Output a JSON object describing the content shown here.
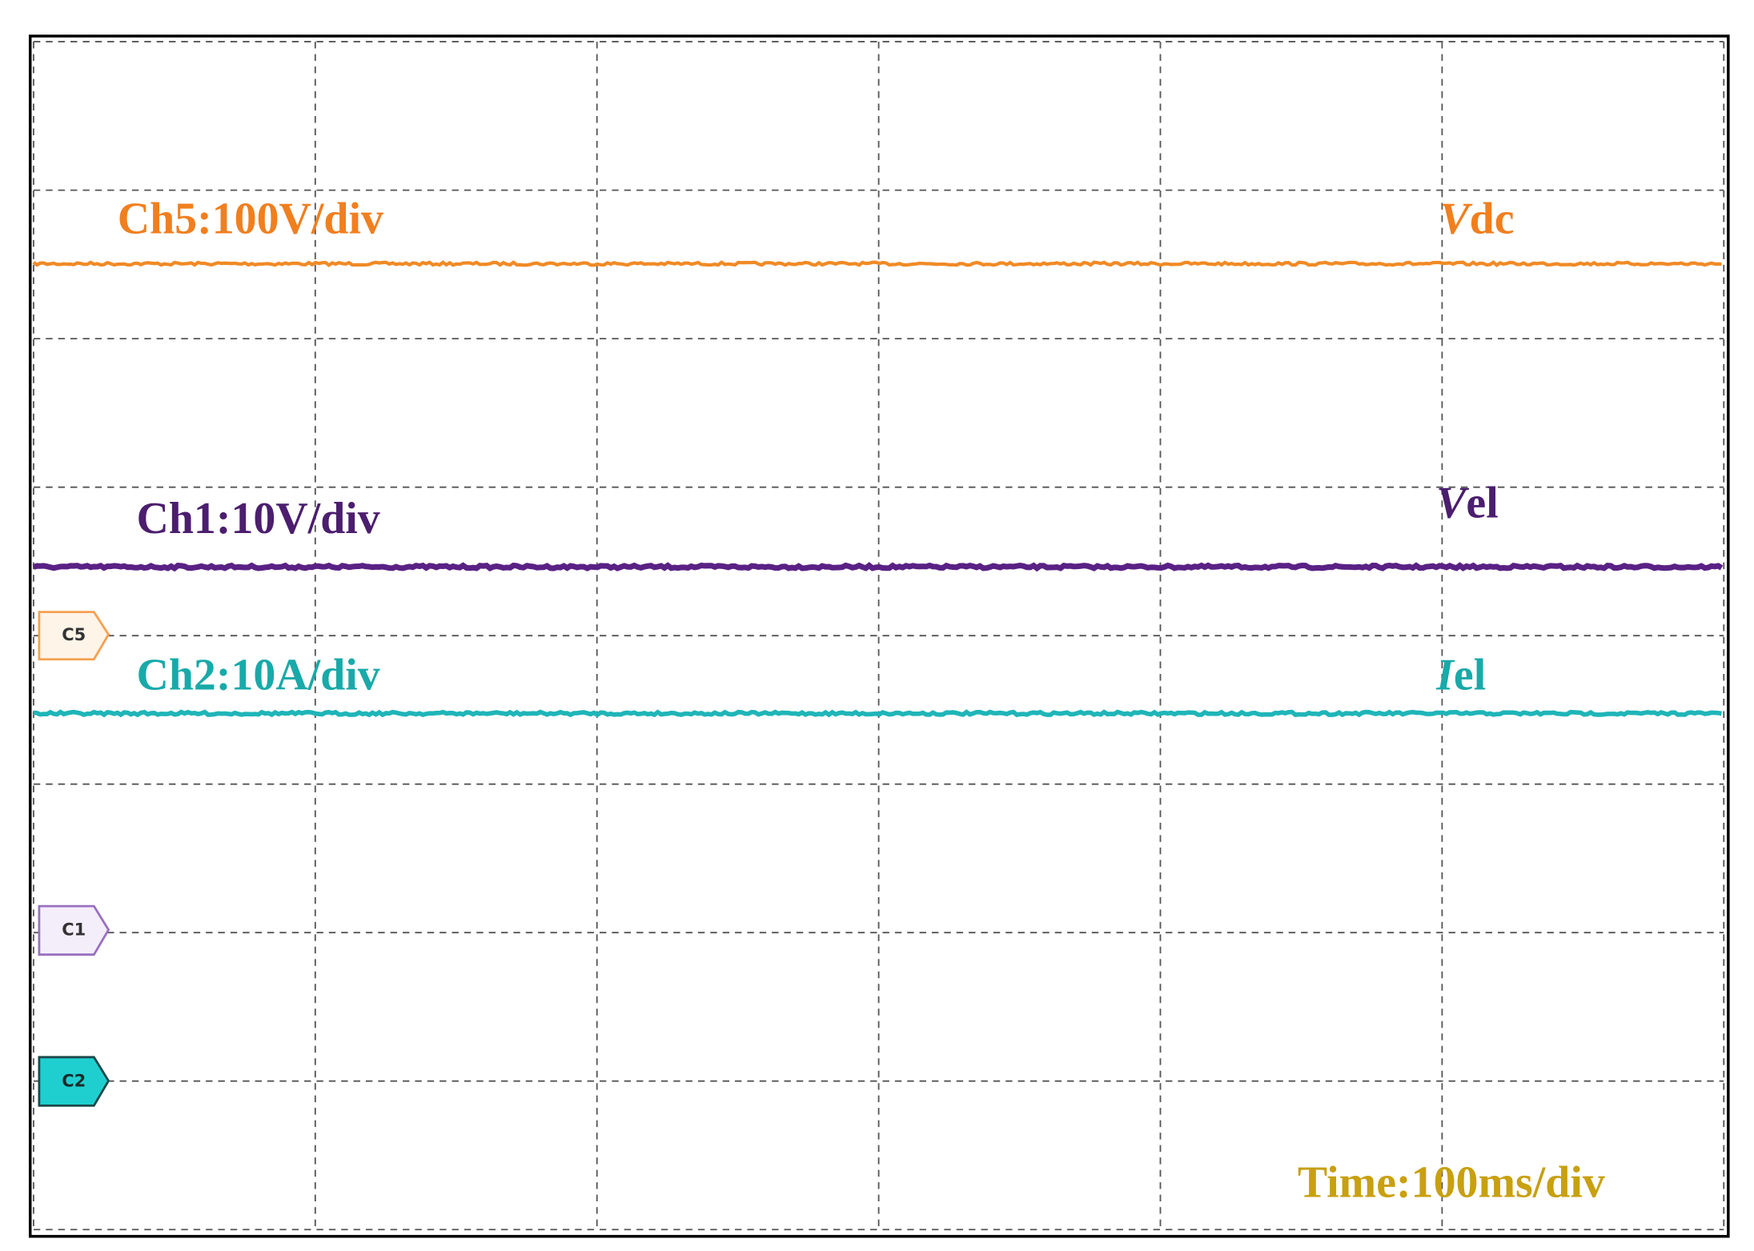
{
  "channels": [
    {
      "label": "Ch5:100V/div",
      "symbol": "V",
      "suffix": "dc",
      "marker": "C5"
    },
    {
      "label": "Ch1:10V/div",
      "symbol": "V",
      "suffix": "el",
      "marker": "C1"
    },
    {
      "label": "Ch2:10A/div",
      "symbol": "I",
      "suffix": "el",
      "marker": "C2"
    }
  ],
  "time_label": "Time:100ms/div"
}
